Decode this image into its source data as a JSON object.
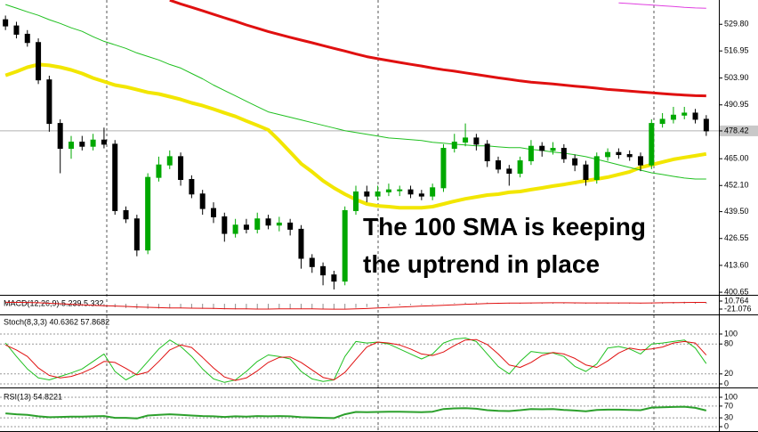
{
  "chart_data": [
    {
      "type": "candlestick",
      "open": [
        532,
        529,
        525,
        521,
        503,
        482,
        470,
        473,
        471,
        474,
        472,
        440,
        436,
        421,
        456,
        462,
        466,
        455,
        448,
        441,
        437,
        429,
        433,
        431,
        436,
        433,
        434,
        431,
        417,
        413,
        409,
        406,
        440,
        449,
        447,
        449,
        450,
        450,
        448,
        447,
        451,
        470,
        473,
        475,
        472,
        464,
        460,
        458,
        464,
        471,
        469,
        470,
        465,
        462,
        455,
        466,
        468,
        467,
        466,
        462,
        482,
        484,
        486,
        487,
        484
      ],
      "high": [
        534,
        531,
        527,
        523,
        505,
        484,
        476,
        476,
        477,
        480,
        474,
        442,
        438,
        458,
        466,
        469,
        468,
        457,
        450,
        444,
        439,
        436,
        436,
        439,
        438,
        437,
        436,
        433,
        419,
        415,
        411,
        442,
        452,
        452,
        452,
        453,
        452,
        452,
        450,
        453,
        472,
        477,
        482,
        477,
        474,
        466,
        462,
        466,
        474,
        473,
        473,
        472,
        467,
        464,
        468,
        470,
        470,
        469,
        468,
        484,
        487,
        490,
        490,
        489,
        486
      ],
      "low": [
        527,
        523,
        519,
        501,
        478,
        458,
        465,
        469,
        469,
        470,
        438,
        434,
        418,
        419,
        454,
        460,
        452,
        446,
        438,
        434,
        425,
        427,
        429,
        429,
        431,
        430,
        428,
        412,
        410,
        404,
        402,
        404,
        438,
        444,
        445,
        447,
        447,
        446,
        445,
        445,
        449,
        468,
        471,
        469,
        461,
        458,
        452,
        456,
        462,
        466,
        467,
        463,
        459,
        452,
        453,
        464,
        465,
        464,
        459,
        460,
        480,
        482,
        484,
        482,
        476
      ],
      "close": [
        529,
        525,
        521,
        503,
        482,
        470,
        473,
        471,
        474,
        472,
        440,
        436,
        421,
        456,
        462,
        466,
        455,
        448,
        441,
        437,
        429,
        433,
        431,
        436,
        433,
        434,
        431,
        417,
        413,
        409,
        406,
        440,
        449,
        447,
        449,
        450,
        450,
        448,
        447,
        451,
        470,
        473,
        475,
        472,
        464,
        460,
        458,
        464,
        471,
        469,
        470,
        465,
        462,
        455,
        466,
        468,
        467,
        466,
        462,
        482,
        484,
        486,
        487,
        484,
        478.42
      ],
      "up_color": "#00a800",
      "down_color": "#000000",
      "series": [
        {
          "color": "#e01010",
          "width": 3,
          "values": [
            null,
            null,
            null,
            null,
            null,
            null,
            null,
            null,
            null,
            null,
            null,
            null,
            null,
            null,
            null,
            541.4,
            539.6,
            538.0,
            536.3,
            534.6,
            532.9,
            531.3,
            529.5,
            527.9,
            526.3,
            524.9,
            523.5,
            522.2,
            520.9,
            519.5,
            518.2,
            516.9,
            515.5,
            514.2,
            513.2,
            512.3,
            511.4,
            510.5,
            509.7,
            508.7,
            507.9,
            507.2,
            506.4,
            505.6,
            504.8,
            504.0,
            503.3,
            502.5,
            501.9,
            501.5,
            501.0,
            500.5,
            500.0,
            499.5,
            499.0,
            498.4,
            498.0,
            497.6,
            497.2,
            496.8,
            496.4,
            496.0,
            495.7,
            495.4,
            495.3
          ]
        },
        {
          "color": "#f2e600",
          "width": 4,
          "values": [
            505.2,
            507.0,
            509.1,
            510.4,
            510.0,
            509.1,
            507.8,
            506.1,
            503.9,
            502.2,
            500.5,
            499.6,
            498.3,
            497.0,
            496.2,
            494.9,
            493.6,
            491.9,
            490.6,
            488.9,
            487.1,
            485.4,
            483.2,
            481.1,
            478.9,
            473.8,
            468.2,
            462.6,
            458.7,
            454.4,
            450.9,
            447.9,
            445.3,
            443.2,
            442.3,
            441.9,
            441.4,
            441.4,
            441.4,
            441.9,
            443.2,
            444.5,
            445.7,
            446.6,
            447.5,
            447.9,
            448.8,
            449.2,
            450.1,
            450.9,
            451.8,
            452.6,
            453.5,
            454.4,
            455.2,
            456.1,
            457.4,
            458.7,
            460.8,
            462.1,
            463.4,
            464.7,
            465.6,
            466.4,
            467.3
          ]
        },
        {
          "color": "#20c020",
          "width": 1,
          "values": [
            539.3,
            537.6,
            535.8,
            534.1,
            532.0,
            530.2,
            528.1,
            526.4,
            523.8,
            521.6,
            519.9,
            518.2,
            516.0,
            514.3,
            512.6,
            510.4,
            508.7,
            506.1,
            503.5,
            500.5,
            497.9,
            495.3,
            492.7,
            490.1,
            487.6,
            486.3,
            485.0,
            483.7,
            482.4,
            481.1,
            479.8,
            478.5,
            477.6,
            476.8,
            475.9,
            475.0,
            474.6,
            474.2,
            473.8,
            472.9,
            472.5,
            472.0,
            471.6,
            471.2,
            471.2,
            470.7,
            470.3,
            470.3,
            469.5,
            469.0,
            468.2,
            467.7,
            466.9,
            466.0,
            464.7,
            463.4,
            462.1,
            460.8,
            459.5,
            458.2,
            457.4,
            456.5,
            455.7,
            455.2,
            455.2
          ]
        },
        {
          "color": "#e040e0",
          "width": 1,
          "values": [
            null,
            null,
            null,
            null,
            null,
            null,
            null,
            null,
            null,
            null,
            null,
            null,
            null,
            null,
            null,
            null,
            null,
            null,
            null,
            null,
            null,
            null,
            null,
            null,
            null,
            null,
            null,
            null,
            null,
            null,
            null,
            null,
            null,
            null,
            null,
            null,
            null,
            null,
            null,
            null,
            null,
            null,
            null,
            null,
            null,
            null,
            null,
            null,
            null,
            null,
            null,
            null,
            null,
            null,
            null,
            null,
            540.1,
            539.8,
            539.4,
            539.1,
            538.7,
            538.4,
            538.0,
            537.7,
            537.5
          ]
        }
      ],
      "ylim": [
        399.4,
        541.5
      ],
      "yticks": [
        {
          "value": 529.8,
          "label": "529.80"
        },
        516.95,
        {
          "value": 503.9,
          "label": "503.90"
        },
        490.95,
        478.42,
        {
          "value": 465,
          "label": "465.00"
        },
        {
          "value": 452.1,
          "label": "452.10"
        },
        {
          "value": 439.5,
          "label": "439.50"
        },
        426.55,
        {
          "value": 413.6,
          "label": "413.60"
        },
        400.65
      ],
      "annotation": [
        "The 100 SMA is keeping",
        "the uptrend in place"
      ],
      "annotation_color": "#e8201f"
    },
    {
      "type": "macd",
      "label": "MACD(12,26,9) 5.239 5.332",
      "histogram": {
        "color": "#8c8c8c",
        "values": [
          5,
          4,
          3,
          0,
          -4,
          -7,
          -9,
          -10,
          -11,
          -11,
          -14,
          -17,
          -20,
          -20,
          -19,
          -18,
          -18,
          -19,
          -20,
          -21,
          -22,
          -22,
          -22,
          -21,
          -20,
          -19,
          -19,
          -20,
          -21,
          -22,
          -23,
          -20,
          -16,
          -13,
          -10,
          -8,
          -6,
          -5,
          -4,
          -3,
          1,
          3,
          5,
          6,
          5,
          4,
          3,
          3,
          4,
          4,
          5,
          4,
          3,
          2,
          3,
          3,
          3,
          3,
          3,
          5,
          6,
          7,
          8,
          7,
          5.239
        ]
      },
      "signal": {
        "color": "#e01010",
        "values": [
          6,
          5.5,
          5,
          4,
          2,
          0,
          -2,
          -4,
          -6,
          -7.5,
          -9,
          -10.5,
          -12.5,
          -14,
          -15.5,
          -16.5,
          -17,
          -17.5,
          -18,
          -18.5,
          -19.5,
          -20,
          -20.5,
          -21,
          -21,
          -20.5,
          -20,
          -20,
          -20.5,
          -21,
          -21.5,
          -21.5,
          -20.5,
          -19,
          -17,
          -15,
          -13,
          -11,
          -9,
          -7.5,
          -6,
          -4,
          -2,
          -0.5,
          1,
          2,
          2.5,
          3,
          3.5,
          3.7,
          4,
          4,
          3.8,
          3.5,
          3.4,
          3.3,
          3.2,
          3.2,
          3.1,
          3.5,
          4,
          4.5,
          5,
          5.3,
          5.332
        ]
      },
      "ylim": [
        -38.8,
        28.5
      ],
      "yticks": [
        10.764,
        -21.076
      ]
    },
    {
      "type": "line",
      "label": "Stoch(8,3,3) 40.6362 57.8682",
      "series": [
        {
          "color": "#20c020",
          "width": 1,
          "values": [
            82,
            55,
            30,
            12,
            8,
            15,
            22,
            30,
            45,
            60,
            25,
            8,
            20,
            45,
            70,
            88,
            75,
            55,
            30,
            10,
            3,
            8,
            25,
            45,
            58,
            55,
            50,
            25,
            10,
            5,
            8,
            55,
            85,
            82,
            84,
            80,
            70,
            60,
            50,
            60,
            82,
            90,
            92,
            85,
            60,
            35,
            20,
            45,
            65,
            62,
            62,
            55,
            35,
            25,
            40,
            72,
            75,
            70,
            60,
            80,
            82,
            85,
            88,
            72,
            40.6362
          ]
        },
        {
          "color": "#e01010",
          "width": 1,
          "values": [
            78,
            68,
            55,
            32,
            17,
            12,
            15,
            22,
            32,
            45,
            43,
            31,
            18,
            24,
            45,
            68,
            78,
            73,
            53,
            32,
            14,
            7,
            12,
            26,
            43,
            53,
            54,
            43,
            28,
            13,
            8,
            23,
            49,
            74,
            84,
            82,
            78,
            70,
            60,
            57,
            64,
            77,
            88,
            89,
            79,
            60,
            38,
            33,
            43,
            57,
            63,
            60,
            51,
            38,
            33,
            46,
            62,
            72,
            68,
            70,
            74,
            82,
            85,
            82,
            57.8682
          ]
        }
      ],
      "ylim": [
        0,
        100
      ],
      "yticks": [
        100,
        80,
        20,
        0
      ],
      "grid": true
    },
    {
      "type": "line",
      "label": "RSI(13) 54.8221",
      "series": [
        {
          "color": "#2ca02c",
          "width": 2,
          "values": [
            45,
            42,
            40,
            35,
            32,
            33,
            34,
            34,
            35,
            36,
            30,
            30,
            28,
            38,
            40,
            42,
            40,
            38,
            36,
            35,
            33,
            35,
            34,
            36,
            35,
            36,
            35,
            32,
            31,
            30,
            29,
            42,
            50,
            49,
            50,
            51,
            51,
            50,
            49,
            51,
            60,
            62,
            63,
            61,
            56,
            54,
            53,
            56,
            60,
            59,
            60,
            57,
            55,
            52,
            57,
            58,
            58,
            57,
            56,
            65,
            66,
            67,
            68,
            64,
            54.8221
          ]
        }
      ],
      "ylim": [
        0,
        100
      ],
      "yticks": [
        100,
        70,
        30,
        0
      ],
      "grid": true
    }
  ]
}
